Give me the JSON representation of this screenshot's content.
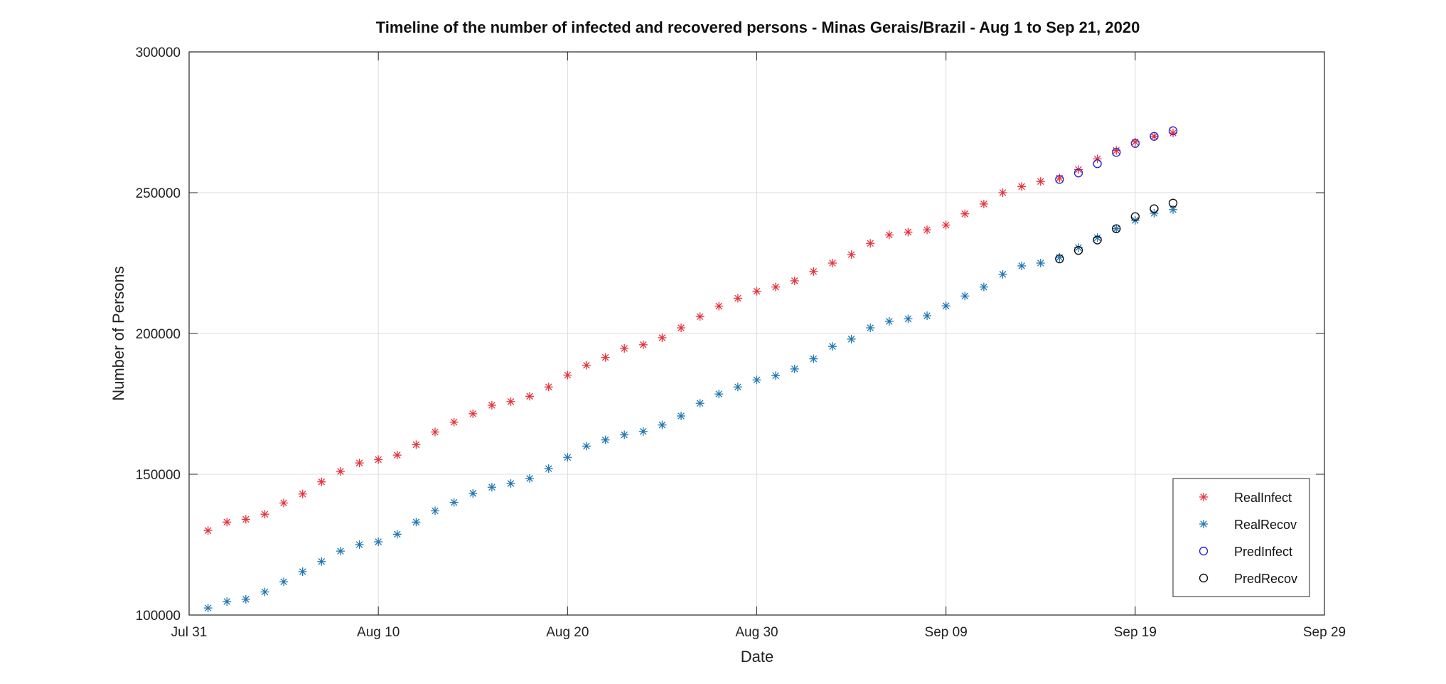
{
  "chart_data": {
    "type": "scatter",
    "title": "Timeline of the number of infected and recovered persons - Minas Gerais/Brazil - Aug 1 to Sep 21, 2020",
    "xlabel": "Date",
    "ylabel": "Number of Persons",
    "xlim": [
      "2020-07-31",
      "2020-09-29"
    ],
    "ylim": [
      100000,
      300000
    ],
    "x_ticks": [
      {
        "date": "2020-07-31",
        "label": "Jul 31"
      },
      {
        "date": "2020-08-10",
        "label": "Aug 10"
      },
      {
        "date": "2020-08-20",
        "label": "Aug 20"
      },
      {
        "date": "2020-08-30",
        "label": "Aug 30"
      },
      {
        "date": "2020-09-09",
        "label": "Sep 09"
      },
      {
        "date": "2020-09-19",
        "label": "Sep 19"
      },
      {
        "date": "2020-09-29",
        "label": "Sep 29"
      }
    ],
    "y_ticks": [
      100000,
      150000,
      200000,
      250000,
      300000
    ],
    "grid": true,
    "legend_position": "bottom-right",
    "series": [
      {
        "name": "RealInfect",
        "marker": "asterisk",
        "color": "#e8303a",
        "x": [
          "2020-08-01",
          "2020-08-02",
          "2020-08-03",
          "2020-08-04",
          "2020-08-05",
          "2020-08-06",
          "2020-08-07",
          "2020-08-08",
          "2020-08-09",
          "2020-08-10",
          "2020-08-11",
          "2020-08-12",
          "2020-08-13",
          "2020-08-14",
          "2020-08-15",
          "2020-08-16",
          "2020-08-17",
          "2020-08-18",
          "2020-08-19",
          "2020-08-20",
          "2020-08-21",
          "2020-08-22",
          "2020-08-23",
          "2020-08-24",
          "2020-08-25",
          "2020-08-26",
          "2020-08-27",
          "2020-08-28",
          "2020-08-29",
          "2020-08-30",
          "2020-08-31",
          "2020-09-01",
          "2020-09-02",
          "2020-09-03",
          "2020-09-04",
          "2020-09-05",
          "2020-09-06",
          "2020-09-07",
          "2020-09-08",
          "2020-09-09",
          "2020-09-10",
          "2020-09-11",
          "2020-09-12",
          "2020-09-13",
          "2020-09-14",
          "2020-09-15",
          "2020-09-16",
          "2020-09-17",
          "2020-09-18",
          "2020-09-19",
          "2020-09-20",
          "2020-09-21"
        ],
        "y": [
          130000,
          133000,
          134000,
          135800,
          139800,
          143000,
          147300,
          151000,
          154000,
          155200,
          156800,
          160500,
          165000,
          168500,
          171500,
          174500,
          175800,
          177700,
          181000,
          185200,
          188700,
          191500,
          194700,
          196000,
          198500,
          202000,
          206000,
          209700,
          212500,
          215000,
          216500,
          218700,
          222000,
          225000,
          228000,
          232000,
          235000,
          236000,
          236800,
          238500,
          242500,
          246000,
          250000,
          252200,
          254000,
          255200,
          258200,
          262000,
          265000,
          268000,
          270000,
          271200
        ]
      },
      {
        "name": "RealRecov",
        "marker": "asterisk",
        "color": "#1f77b4",
        "x": [
          "2020-08-01",
          "2020-08-02",
          "2020-08-03",
          "2020-08-04",
          "2020-08-05",
          "2020-08-06",
          "2020-08-07",
          "2020-08-08",
          "2020-08-09",
          "2020-08-10",
          "2020-08-11",
          "2020-08-12",
          "2020-08-13",
          "2020-08-14",
          "2020-08-15",
          "2020-08-16",
          "2020-08-17",
          "2020-08-18",
          "2020-08-19",
          "2020-08-20",
          "2020-08-21",
          "2020-08-22",
          "2020-08-23",
          "2020-08-24",
          "2020-08-25",
          "2020-08-26",
          "2020-08-27",
          "2020-08-28",
          "2020-08-29",
          "2020-08-30",
          "2020-08-31",
          "2020-09-01",
          "2020-09-02",
          "2020-09-03",
          "2020-09-04",
          "2020-09-05",
          "2020-09-06",
          "2020-09-07",
          "2020-09-08",
          "2020-09-09",
          "2020-09-10",
          "2020-09-11",
          "2020-09-12",
          "2020-09-13",
          "2020-09-14",
          "2020-09-15",
          "2020-09-16",
          "2020-09-17",
          "2020-09-18",
          "2020-09-19",
          "2020-09-20",
          "2020-09-21"
        ],
        "y": [
          102500,
          104800,
          105600,
          108200,
          111800,
          115400,
          119000,
          122700,
          125000,
          126000,
          128700,
          133000,
          137000,
          140000,
          143200,
          145400,
          146700,
          148500,
          152000,
          156000,
          160000,
          162200,
          164000,
          165200,
          167500,
          170700,
          175200,
          178500,
          181000,
          183500,
          185000,
          187400,
          191000,
          195400,
          198000,
          202000,
          204300,
          205200,
          206300,
          209800,
          213300,
          216500,
          221000,
          224000,
          225000,
          227000,
          230500,
          234000,
          237200,
          240200,
          242700,
          244000
        ]
      },
      {
        "name": "PredInfect",
        "marker": "circle",
        "color": "#2b2bd6",
        "x": [
          "2020-09-15",
          "2020-09-16",
          "2020-09-17",
          "2020-09-18",
          "2020-09-19",
          "2020-09-20",
          "2020-09-21"
        ],
        "y": [
          254700,
          257000,
          260300,
          264300,
          267500,
          270000,
          272000
        ]
      },
      {
        "name": "PredRecov",
        "marker": "circle",
        "color": "#111111",
        "x": [
          "2020-09-15",
          "2020-09-16",
          "2020-09-17",
          "2020-09-18",
          "2020-09-19",
          "2020-09-20",
          "2020-09-21"
        ],
        "y": [
          226500,
          229500,
          233200,
          237200,
          241500,
          244300,
          246300
        ]
      }
    ]
  }
}
